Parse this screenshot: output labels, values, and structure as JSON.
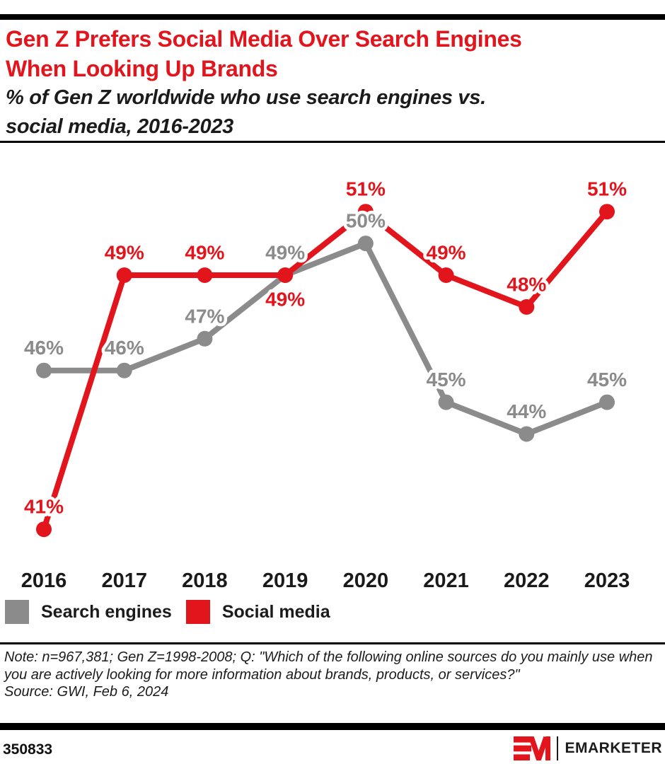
{
  "colors": {
    "red": "#e2151d",
    "gray": "#8b8b8b"
  },
  "header": {
    "title_lines": [
      "Gen Z Prefers Social Media Over Search Engines",
      "When Looking Up Brands"
    ],
    "subtitle_lines": [
      "% of Gen Z worldwide who use search engines vs.",
      "social media, 2016-2023"
    ]
  },
  "chart_data": {
    "type": "line",
    "x": [
      "2016",
      "2017",
      "2018",
      "2019",
      "2020",
      "2021",
      "2022",
      "2023"
    ],
    "value_suffix": "%",
    "ylim": [
      38,
      54
    ],
    "grid": false,
    "legend_position": "bottom",
    "series": [
      {
        "id": "search-engines",
        "name": "Search engines",
        "color": "#8b8b8b",
        "values": [
          46,
          46,
          47,
          49,
          50,
          45,
          44,
          45
        ],
        "label_side": [
          "above",
          "above",
          "above",
          "above",
          "above",
          "above",
          "above",
          "above"
        ]
      },
      {
        "id": "social-media",
        "name": "Social media",
        "color": "#e2151d",
        "values": [
          41,
          49,
          49,
          49,
          51,
          49,
          48,
          51
        ],
        "label_side": [
          "above",
          "above",
          "above",
          "below",
          "above",
          "above",
          "above",
          "above"
        ]
      }
    ]
  },
  "note": {
    "note_text": "Note: n=967,381; Gen Z=1998-2008; Q: \"Which of the following online sources do you mainly use when you are actively looking for more information about brands, products, or services?\"",
    "source_text": "Source: GWI, Feb 6, 2024"
  },
  "footer": {
    "chart_id": "350833",
    "brand": "EMARKETER"
  }
}
